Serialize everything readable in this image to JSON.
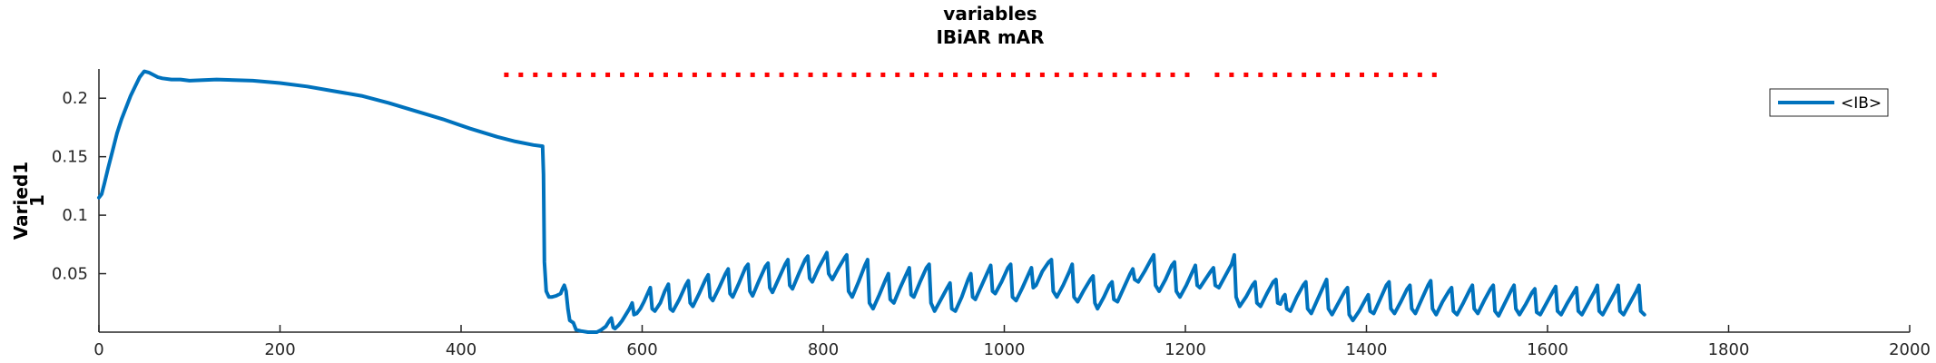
{
  "chart_data": {
    "type": "line",
    "title_lines": [
      "variables",
      "IBiAR mAR"
    ],
    "ylabel_lines": [
      "Varied1",
      "1"
    ],
    "xlabel": "",
    "xlim": [
      0,
      2000
    ],
    "ylim": [
      0,
      0.225
    ],
    "xticks": [
      0,
      200,
      400,
      600,
      800,
      1000,
      1200,
      1400,
      1600,
      1800,
      2000
    ],
    "yticks": [
      0.05,
      0.1,
      0.15,
      0.2
    ],
    "ytick_labels": [
      "0.05",
      "0.1",
      "0.15",
      "0.2"
    ],
    "grid": false,
    "legend_position": "top-right",
    "series": [
      {
        "name": "<IB>",
        "color": "#0072BD",
        "points": [
          [
            0,
            0.115
          ],
          [
            3,
            0.118
          ],
          [
            6,
            0.127
          ],
          [
            10,
            0.14
          ],
          [
            15,
            0.155
          ],
          [
            20,
            0.17
          ],
          [
            25,
            0.182
          ],
          [
            30,
            0.192
          ],
          [
            35,
            0.202
          ],
          [
            40,
            0.21
          ],
          [
            45,
            0.218
          ],
          [
            50,
            0.223
          ],
          [
            55,
            0.222
          ],
          [
            60,
            0.22
          ],
          [
            65,
            0.218
          ],
          [
            70,
            0.217
          ],
          [
            80,
            0.216
          ],
          [
            90,
            0.216
          ],
          [
            100,
            0.215
          ],
          [
            130,
            0.216
          ],
          [
            170,
            0.215
          ],
          [
            200,
            0.213
          ],
          [
            230,
            0.21
          ],
          [
            260,
            0.206
          ],
          [
            290,
            0.202
          ],
          [
            320,
            0.196
          ],
          [
            350,
            0.189
          ],
          [
            380,
            0.182
          ],
          [
            410,
            0.174
          ],
          [
            440,
            0.167
          ],
          [
            460,
            0.163
          ],
          [
            480,
            0.16
          ],
          [
            490,
            0.159
          ],
          [
            491,
            0.135
          ],
          [
            492,
            0.06
          ],
          [
            494,
            0.035
          ],
          [
            497,
            0.03
          ],
          [
            500,
            0.03
          ],
          [
            505,
            0.031
          ],
          [
            510,
            0.033
          ],
          [
            512,
            0.037
          ],
          [
            514,
            0.04
          ],
          [
            516,
            0.035
          ],
          [
            518,
            0.02
          ],
          [
            520,
            0.01
          ],
          [
            524,
            0.008
          ],
          [
            527,
            0.002
          ],
          [
            532,
            0.001
          ],
          [
            540,
            0.0
          ],
          [
            550,
            0.0
          ],
          [
            555,
            0.002
          ],
          [
            560,
            0.005
          ],
          [
            564,
            0.01
          ],
          [
            566,
            0.012
          ],
          [
            568,
            0.004
          ],
          [
            570,
            0.003
          ],
          [
            574,
            0.006
          ],
          [
            578,
            0.01
          ],
          [
            582,
            0.015
          ],
          [
            586,
            0.02
          ],
          [
            589,
            0.025
          ],
          [
            591,
            0.015
          ],
          [
            594,
            0.016
          ],
          [
            598,
            0.02
          ],
          [
            602,
            0.026
          ],
          [
            606,
            0.033
          ],
          [
            609,
            0.038
          ],
          [
            611,
            0.02
          ],
          [
            614,
            0.018
          ],
          [
            620,
            0.025
          ],
          [
            625,
            0.035
          ],
          [
            629,
            0.041
          ],
          [
            631,
            0.02
          ],
          [
            634,
            0.018
          ],
          [
            641,
            0.028
          ],
          [
            648,
            0.04
          ],
          [
            651,
            0.044
          ],
          [
            653,
            0.025
          ],
          [
            656,
            0.022
          ],
          [
            663,
            0.033
          ],
          [
            670,
            0.045
          ],
          [
            673,
            0.049
          ],
          [
            675,
            0.03
          ],
          [
            678,
            0.027
          ],
          [
            685,
            0.038
          ],
          [
            692,
            0.05
          ],
          [
            695,
            0.054
          ],
          [
            697,
            0.033
          ],
          [
            700,
            0.03
          ],
          [
            707,
            0.042
          ],
          [
            714,
            0.055
          ],
          [
            717,
            0.058
          ],
          [
            719,
            0.035
          ],
          [
            722,
            0.031
          ],
          [
            729,
            0.044
          ],
          [
            736,
            0.056
          ],
          [
            739,
            0.059
          ],
          [
            741,
            0.038
          ],
          [
            744,
            0.034
          ],
          [
            751,
            0.046
          ],
          [
            758,
            0.058
          ],
          [
            761,
            0.062
          ],
          [
            763,
            0.04
          ],
          [
            766,
            0.037
          ],
          [
            773,
            0.05
          ],
          [
            780,
            0.062
          ],
          [
            783,
            0.065
          ],
          [
            785,
            0.046
          ],
          [
            788,
            0.043
          ],
          [
            795,
            0.055
          ],
          [
            802,
            0.065
          ],
          [
            804,
            0.068
          ],
          [
            806,
            0.05
          ],
          [
            810,
            0.045
          ],
          [
            817,
            0.055
          ],
          [
            824,
            0.064
          ],
          [
            826,
            0.066
          ],
          [
            828,
            0.035
          ],
          [
            832,
            0.03
          ],
          [
            839,
            0.043
          ],
          [
            846,
            0.057
          ],
          [
            849,
            0.062
          ],
          [
            851,
            0.025
          ],
          [
            855,
            0.02
          ],
          [
            862,
            0.032
          ],
          [
            869,
            0.045
          ],
          [
            872,
            0.05
          ],
          [
            874,
            0.028
          ],
          [
            878,
            0.025
          ],
          [
            885,
            0.038
          ],
          [
            892,
            0.05
          ],
          [
            895,
            0.055
          ],
          [
            897,
            0.032
          ],
          [
            900,
            0.03
          ],
          [
            907,
            0.043
          ],
          [
            914,
            0.055
          ],
          [
            917,
            0.058
          ],
          [
            919,
            0.025
          ],
          [
            923,
            0.018
          ],
          [
            930,
            0.028
          ],
          [
            937,
            0.038
          ],
          [
            940,
            0.042
          ],
          [
            942,
            0.02
          ],
          [
            946,
            0.018
          ],
          [
            953,
            0.03
          ],
          [
            960,
            0.045
          ],
          [
            963,
            0.05
          ],
          [
            965,
            0.03
          ],
          [
            968,
            0.028
          ],
          [
            975,
            0.04
          ],
          [
            982,
            0.052
          ],
          [
            985,
            0.057
          ],
          [
            987,
            0.035
          ],
          [
            990,
            0.033
          ],
          [
            997,
            0.043
          ],
          [
            1004,
            0.055
          ],
          [
            1007,
            0.058
          ],
          [
            1009,
            0.03
          ],
          [
            1013,
            0.027
          ],
          [
            1020,
            0.038
          ],
          [
            1027,
            0.05
          ],
          [
            1030,
            0.055
          ],
          [
            1032,
            0.038
          ],
          [
            1035,
            0.04
          ],
          [
            1042,
            0.052
          ],
          [
            1049,
            0.06
          ],
          [
            1052,
            0.062
          ],
          [
            1054,
            0.035
          ],
          [
            1058,
            0.03
          ],
          [
            1065,
            0.04
          ],
          [
            1072,
            0.052
          ],
          [
            1075,
            0.058
          ],
          [
            1077,
            0.03
          ],
          [
            1081,
            0.026
          ],
          [
            1088,
            0.036
          ],
          [
            1095,
            0.045
          ],
          [
            1098,
            0.048
          ],
          [
            1100,
            0.025
          ],
          [
            1103,
            0.02
          ],
          [
            1110,
            0.03
          ],
          [
            1116,
            0.04
          ],
          [
            1119,
            0.043
          ],
          [
            1121,
            0.028
          ],
          [
            1125,
            0.026
          ],
          [
            1132,
            0.038
          ],
          [
            1139,
            0.05
          ],
          [
            1142,
            0.054
          ],
          [
            1144,
            0.045
          ],
          [
            1148,
            0.043
          ],
          [
            1155,
            0.052
          ],
          [
            1162,
            0.062
          ],
          [
            1165,
            0.066
          ],
          [
            1167,
            0.04
          ],
          [
            1171,
            0.035
          ],
          [
            1178,
            0.045
          ],
          [
            1185,
            0.057
          ],
          [
            1188,
            0.06
          ],
          [
            1190,
            0.035
          ],
          [
            1194,
            0.03
          ],
          [
            1201,
            0.04
          ],
          [
            1208,
            0.052
          ],
          [
            1211,
            0.057
          ],
          [
            1213,
            0.04
          ],
          [
            1216,
            0.038
          ],
          [
            1222,
            0.045
          ],
          [
            1228,
            0.052
          ],
          [
            1231,
            0.055
          ],
          [
            1233,
            0.04
          ],
          [
            1237,
            0.038
          ],
          [
            1244,
            0.048
          ],
          [
            1251,
            0.058
          ],
          [
            1254,
            0.066
          ],
          [
            1256,
            0.03
          ],
          [
            1260,
            0.022
          ],
          [
            1267,
            0.03
          ],
          [
            1274,
            0.04
          ],
          [
            1277,
            0.043
          ],
          [
            1279,
            0.025
          ],
          [
            1283,
            0.022
          ],
          [
            1290,
            0.033
          ],
          [
            1297,
            0.043
          ],
          [
            1300,
            0.045
          ],
          [
            1302,
            0.025
          ],
          [
            1305,
            0.024
          ],
          [
            1308,
            0.03
          ],
          [
            1310,
            0.032
          ],
          [
            1312,
            0.02
          ],
          [
            1316,
            0.018
          ],
          [
            1323,
            0.03
          ],
          [
            1330,
            0.04
          ],
          [
            1333,
            0.043
          ],
          [
            1335,
            0.02
          ],
          [
            1339,
            0.016
          ],
          [
            1346,
            0.028
          ],
          [
            1353,
            0.04
          ],
          [
            1356,
            0.045
          ],
          [
            1358,
            0.02
          ],
          [
            1362,
            0.015
          ],
          [
            1369,
            0.025
          ],
          [
            1376,
            0.035
          ],
          [
            1379,
            0.038
          ],
          [
            1381,
            0.015
          ],
          [
            1385,
            0.01
          ],
          [
            1392,
            0.018
          ],
          [
            1399,
            0.028
          ],
          [
            1402,
            0.032
          ],
          [
            1404,
            0.018
          ],
          [
            1408,
            0.016
          ],
          [
            1415,
            0.028
          ],
          [
            1422,
            0.04
          ],
          [
            1425,
            0.043
          ],
          [
            1427,
            0.02
          ],
          [
            1431,
            0.016
          ],
          [
            1438,
            0.026
          ],
          [
            1445,
            0.037
          ],
          [
            1448,
            0.04
          ],
          [
            1450,
            0.02
          ],
          [
            1454,
            0.016
          ],
          [
            1461,
            0.028
          ],
          [
            1468,
            0.04
          ],
          [
            1471,
            0.044
          ],
          [
            1473,
            0.02
          ],
          [
            1477,
            0.015
          ],
          [
            1484,
            0.026
          ],
          [
            1491,
            0.035
          ],
          [
            1494,
            0.038
          ],
          [
            1496,
            0.018
          ],
          [
            1500,
            0.015
          ],
          [
            1507,
            0.025
          ],
          [
            1514,
            0.036
          ],
          [
            1517,
            0.04
          ],
          [
            1519,
            0.02
          ],
          [
            1523,
            0.016
          ],
          [
            1530,
            0.027
          ],
          [
            1537,
            0.037
          ],
          [
            1540,
            0.04
          ],
          [
            1542,
            0.018
          ],
          [
            1546,
            0.014
          ],
          [
            1553,
            0.025
          ],
          [
            1560,
            0.036
          ],
          [
            1563,
            0.04
          ],
          [
            1565,
            0.02
          ],
          [
            1569,
            0.015
          ],
          [
            1576,
            0.024
          ],
          [
            1583,
            0.034
          ],
          [
            1586,
            0.037
          ],
          [
            1588,
            0.017
          ],
          [
            1592,
            0.015
          ],
          [
            1599,
            0.025
          ],
          [
            1606,
            0.035
          ],
          [
            1609,
            0.039
          ],
          [
            1611,
            0.018
          ],
          [
            1615,
            0.015
          ],
          [
            1622,
            0.025
          ],
          [
            1629,
            0.034
          ],
          [
            1632,
            0.038
          ],
          [
            1634,
            0.018
          ],
          [
            1638,
            0.015
          ],
          [
            1645,
            0.025
          ],
          [
            1652,
            0.035
          ],
          [
            1655,
            0.04
          ],
          [
            1657,
            0.018
          ],
          [
            1661,
            0.015
          ],
          [
            1668,
            0.025
          ],
          [
            1675,
            0.035
          ],
          [
            1678,
            0.04
          ],
          [
            1680,
            0.018
          ],
          [
            1684,
            0.015
          ],
          [
            1691,
            0.025
          ],
          [
            1698,
            0.035
          ],
          [
            1701,
            0.04
          ],
          [
            1703,
            0.018
          ],
          [
            1707,
            0.015
          ]
        ]
      }
    ],
    "red_dots": {
      "color": "#FF0000",
      "y": 0.22,
      "segments": [
        [
          450,
          1205
        ],
        [
          1235,
          1480
        ]
      ],
      "spacing": 16
    }
  }
}
